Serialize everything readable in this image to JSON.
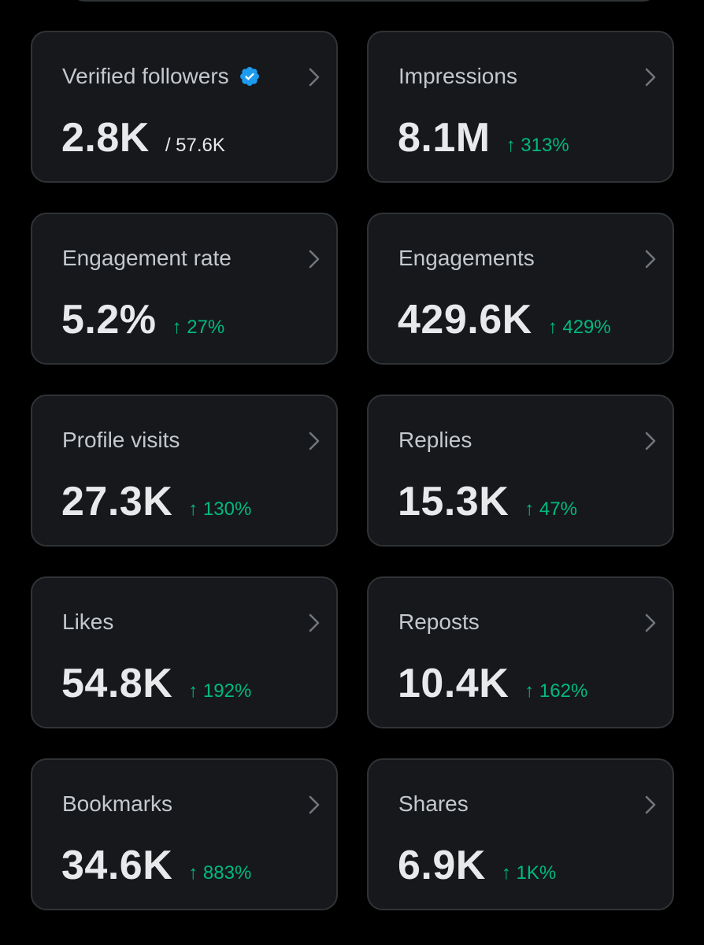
{
  "accent_color": "#1d9bf0",
  "positive_color": "#00ba7c",
  "metrics": [
    {
      "title": "Verified followers",
      "value": "2.8K",
      "secondary": "/ 57.6K",
      "verified_icon": "verified-badge-icon"
    },
    {
      "title": "Impressions",
      "value": "8.1M",
      "change": "↑ 313%"
    },
    {
      "title": "Engagement rate",
      "value": "5.2%",
      "change": "↑ 27%"
    },
    {
      "title": "Engagements",
      "value": "429.6K",
      "change": "↑ 429%"
    },
    {
      "title": "Profile visits",
      "value": "27.3K",
      "change": "↑ 130%"
    },
    {
      "title": "Replies",
      "value": "15.3K",
      "change": "↑ 47%"
    },
    {
      "title": "Likes",
      "value": "54.8K",
      "change": "↑ 192%"
    },
    {
      "title": "Reposts",
      "value": "10.4K",
      "change": "↑ 162%"
    },
    {
      "title": "Bookmarks",
      "value": "34.6K",
      "change": "↑ 883%"
    },
    {
      "title": "Shares",
      "value": "6.9K",
      "change": "↑ 1K%"
    }
  ]
}
